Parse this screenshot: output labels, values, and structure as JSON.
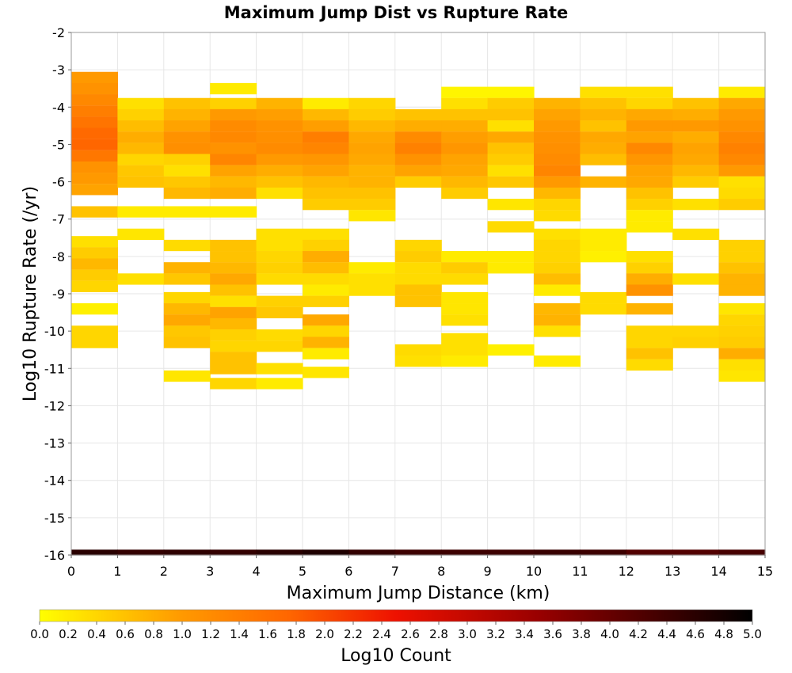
{
  "chart_data": {
    "type": "heatmap",
    "title": "Maximum Jump Dist vs Rupture Rate",
    "xlabel": "Maximum Jump Distance (km)",
    "ylabel": "Log10 Rupture Rate (/yr)",
    "xlim": [
      0,
      15
    ],
    "ylim": [
      -16,
      -2
    ],
    "x_ticks": [
      "0",
      "1",
      "2",
      "3",
      "4",
      "5",
      "6",
      "7",
      "8",
      "9",
      "10",
      "11",
      "12",
      "13",
      "14",
      "15"
    ],
    "y_ticks": [
      "-2",
      "-3",
      "-4",
      "-5",
      "-6",
      "-7",
      "-8",
      "-9",
      "-10",
      "-11",
      "-12",
      "-13",
      "-14",
      "-15",
      "-16"
    ],
    "bin_width_x": 1,
    "bin_height_y": 0.29,
    "grid": true,
    "colorbar": {
      "label": "Log10 Count",
      "min": 0.0,
      "max": 5.0,
      "ticks": [
        "0.0",
        "0.2",
        "0.4",
        "0.6",
        "0.8",
        "1.0",
        "1.2",
        "1.4",
        "1.6",
        "1.8",
        "2.0",
        "2.2",
        "2.4",
        "2.6",
        "2.8",
        "3.0",
        "3.2",
        "3.4",
        "3.6",
        "3.8",
        "4.0",
        "4.2",
        "4.4",
        "4.6",
        "4.8",
        "5.0"
      ],
      "colors": [
        "#ffff00",
        "#ff9900",
        "#ff6600",
        "#ee1100",
        "#990000",
        "#000000"
      ]
    },
    "columns": [
      {
        "x": 0,
        "cells": [
          [
            -3.2,
            1.0
          ],
          [
            -3.5,
            1.1
          ],
          [
            -3.8,
            1.25
          ],
          [
            -4.1,
            1.4
          ],
          [
            -4.4,
            1.55
          ],
          [
            -4.7,
            1.7
          ],
          [
            -5.0,
            1.75
          ],
          [
            -5.3,
            1.5
          ],
          [
            -5.6,
            1.1
          ],
          [
            -5.9,
            1.0
          ],
          [
            -6.2,
            0.9
          ],
          [
            -6.8,
            0.6
          ],
          [
            -7.6,
            0.3
          ],
          [
            -7.9,
            0.5
          ],
          [
            -8.2,
            0.7
          ],
          [
            -8.5,
            0.5
          ],
          [
            -8.8,
            0.4
          ],
          [
            -9.4,
            0.15
          ],
          [
            -10.0,
            0.4
          ],
          [
            -10.3,
            0.4
          ],
          [
            -16.0,
            4.6
          ]
        ]
      },
      {
        "x": 1,
        "cells": [
          [
            -3.9,
            0.3
          ],
          [
            -4.2,
            0.45
          ],
          [
            -4.5,
            0.65
          ],
          [
            -4.8,
            0.8
          ],
          [
            -5.1,
            0.7
          ],
          [
            -5.4,
            0.4
          ],
          [
            -5.7,
            0.55
          ],
          [
            -6.0,
            0.6
          ],
          [
            -6.8,
            0.2
          ],
          [
            -7.4,
            0.25
          ],
          [
            -8.6,
            0.3
          ],
          [
            -16.0,
            4.5
          ]
        ]
      },
      {
        "x": 2,
        "cells": [
          [
            -3.9,
            0.6
          ],
          [
            -4.2,
            0.75
          ],
          [
            -4.5,
            0.9
          ],
          [
            -4.8,
            1.1
          ],
          [
            -5.1,
            1.15
          ],
          [
            -5.4,
            0.45
          ],
          [
            -5.7,
            0.3
          ],
          [
            -6.0,
            0.55
          ],
          [
            -6.3,
            0.7
          ],
          [
            -6.8,
            0.2
          ],
          [
            -7.7,
            0.35
          ],
          [
            -8.3,
            0.75
          ],
          [
            -8.6,
            0.55
          ],
          [
            -9.1,
            0.4
          ],
          [
            -9.4,
            0.7
          ],
          [
            -9.7,
            0.85
          ],
          [
            -10.0,
            0.55
          ],
          [
            -10.3,
            0.6
          ],
          [
            -11.2,
            0.25
          ],
          [
            -16.0,
            4.55
          ]
        ]
      },
      {
        "x": 3,
        "cells": [
          [
            -3.5,
            0.2
          ],
          [
            -3.9,
            0.45
          ],
          [
            -4.2,
            1.0
          ],
          [
            -4.5,
            1.2
          ],
          [
            -4.8,
            1.25
          ],
          [
            -5.1,
            1.1
          ],
          [
            -5.4,
            1.3
          ],
          [
            -5.7,
            0.9
          ],
          [
            -6.0,
            0.7
          ],
          [
            -6.3,
            0.8
          ],
          [
            -6.8,
            0.2
          ],
          [
            -7.7,
            0.6
          ],
          [
            -8.0,
            0.6
          ],
          [
            -8.3,
            0.7
          ],
          [
            -8.6,
            0.85
          ],
          [
            -8.9,
            0.6
          ],
          [
            -9.2,
            0.3
          ],
          [
            -9.5,
            0.9
          ],
          [
            -9.8,
            0.7
          ],
          [
            -10.1,
            0.45
          ],
          [
            -10.4,
            0.4
          ],
          [
            -10.7,
            0.6
          ],
          [
            -11.0,
            0.6
          ],
          [
            -11.4,
            0.4
          ],
          [
            -16.0,
            4.5
          ]
        ]
      },
      {
        "x": 4,
        "cells": [
          [
            -3.9,
            0.75
          ],
          [
            -4.2,
            0.95
          ],
          [
            -4.5,
            1.1
          ],
          [
            -4.8,
            1.15
          ],
          [
            -5.1,
            1.2
          ],
          [
            -5.4,
            1.0
          ],
          [
            -5.7,
            0.8
          ],
          [
            -6.0,
            0.6
          ],
          [
            -6.3,
            0.3
          ],
          [
            -7.4,
            0.3
          ],
          [
            -7.7,
            0.3
          ],
          [
            -8.0,
            0.4
          ],
          [
            -8.3,
            0.45
          ],
          [
            -8.6,
            0.35
          ],
          [
            -9.2,
            0.45
          ],
          [
            -9.5,
            0.55
          ],
          [
            -10.1,
            0.35
          ],
          [
            -10.4,
            0.4
          ],
          [
            -11.0,
            0.3
          ],
          [
            -11.4,
            0.2
          ],
          [
            -16.0,
            4.6
          ]
        ]
      },
      {
        "x": 5,
        "cells": [
          [
            -3.9,
            0.2
          ],
          [
            -4.2,
            0.7
          ],
          [
            -4.5,
            0.95
          ],
          [
            -4.8,
            1.4
          ],
          [
            -5.1,
            1.3
          ],
          [
            -5.4,
            1.05
          ],
          [
            -5.7,
            0.9
          ],
          [
            -6.0,
            0.7
          ],
          [
            -6.3,
            0.6
          ],
          [
            -6.6,
            0.5
          ],
          [
            -7.4,
            0.3
          ],
          [
            -7.7,
            0.45
          ],
          [
            -8.0,
            0.8
          ],
          [
            -8.3,
            0.65
          ],
          [
            -8.6,
            0.35
          ],
          [
            -8.9,
            0.2
          ],
          [
            -9.2,
            0.45
          ],
          [
            -9.7,
            0.85
          ],
          [
            -10.0,
            0.4
          ],
          [
            -10.3,
            0.75
          ],
          [
            -10.6,
            0.2
          ],
          [
            -11.1,
            0.25
          ],
          [
            -16.0,
            4.7
          ]
        ]
      },
      {
        "x": 6,
        "cells": [
          [
            -3.9,
            0.4
          ],
          [
            -4.2,
            0.5
          ],
          [
            -4.5,
            0.7
          ],
          [
            -4.8,
            0.85
          ],
          [
            -5.1,
            0.9
          ],
          [
            -5.4,
            0.85
          ],
          [
            -5.7,
            0.75
          ],
          [
            -6.0,
            0.75
          ],
          [
            -6.3,
            0.6
          ],
          [
            -6.6,
            0.5
          ],
          [
            -6.9,
            0.25
          ],
          [
            -8.3,
            0.2
          ],
          [
            -8.6,
            0.3
          ],
          [
            -8.9,
            0.3
          ],
          [
            -16.0,
            4.5
          ]
        ]
      },
      {
        "x": 7,
        "cells": [
          [
            -4.2,
            0.6
          ],
          [
            -4.5,
            0.8
          ],
          [
            -4.8,
            1.2
          ],
          [
            -5.1,
            1.35
          ],
          [
            -5.4,
            1.1
          ],
          [
            -5.7,
            0.9
          ],
          [
            -6.0,
            0.5
          ],
          [
            -7.7,
            0.4
          ],
          [
            -8.0,
            0.5
          ],
          [
            -8.3,
            0.35
          ],
          [
            -8.6,
            0.35
          ],
          [
            -8.9,
            0.6
          ],
          [
            -9.2,
            0.6
          ],
          [
            -10.5,
            0.35
          ],
          [
            -10.8,
            0.3
          ],
          [
            -16.0,
            4.4
          ]
        ]
      },
      {
        "x": 8,
        "cells": [
          [
            -3.6,
            0.1
          ],
          [
            -3.9,
            0.3
          ],
          [
            -4.2,
            0.6
          ],
          [
            -4.5,
            0.8
          ],
          [
            -4.8,
            0.95
          ],
          [
            -5.1,
            1.05
          ],
          [
            -5.4,
            0.9
          ],
          [
            -5.7,
            0.85
          ],
          [
            -6.0,
            0.7
          ],
          [
            -6.3,
            0.5
          ],
          [
            -8.0,
            0.2
          ],
          [
            -8.3,
            0.5
          ],
          [
            -8.6,
            0.35
          ],
          [
            -9.1,
            0.25
          ],
          [
            -9.4,
            0.25
          ],
          [
            -9.7,
            0.3
          ],
          [
            -10.2,
            0.3
          ],
          [
            -10.5,
            0.3
          ],
          [
            -10.8,
            0.2
          ],
          [
            -16.0,
            4.4
          ]
        ]
      },
      {
        "x": 9,
        "cells": [
          [
            -3.6,
            0.1
          ],
          [
            -3.9,
            0.5
          ],
          [
            -4.2,
            0.6
          ],
          [
            -4.5,
            0.3
          ],
          [
            -4.8,
            0.85
          ],
          [
            -5.1,
            0.6
          ],
          [
            -5.4,
            0.5
          ],
          [
            -5.7,
            0.3
          ],
          [
            -6.0,
            0.55
          ],
          [
            -6.6,
            0.25
          ],
          [
            -7.2,
            0.35
          ],
          [
            -8.0,
            0.2
          ],
          [
            -8.3,
            0.2
          ],
          [
            -10.5,
            0.15
          ],
          [
            -16.0,
            4.4
          ]
        ]
      },
      {
        "x": 10,
        "cells": [
          [
            -3.9,
            0.75
          ],
          [
            -4.2,
            0.9
          ],
          [
            -4.5,
            1.0
          ],
          [
            -4.8,
            1.1
          ],
          [
            -5.1,
            1.15
          ],
          [
            -5.4,
            1.2
          ],
          [
            -5.7,
            1.3
          ],
          [
            -6.0,
            1.0
          ],
          [
            -6.3,
            0.7
          ],
          [
            -6.6,
            0.4
          ],
          [
            -6.9,
            0.35
          ],
          [
            -7.4,
            0.3
          ],
          [
            -7.7,
            0.4
          ],
          [
            -8.0,
            0.4
          ],
          [
            -8.3,
            0.45
          ],
          [
            -8.6,
            0.65
          ],
          [
            -8.9,
            0.2
          ],
          [
            -9.4,
            0.7
          ],
          [
            -9.7,
            0.75
          ],
          [
            -10.0,
            0.3
          ],
          [
            -10.8,
            0.2
          ],
          [
            -16.0,
            4.45
          ]
        ]
      },
      {
        "x": 11,
        "cells": [
          [
            -3.6,
            0.3
          ],
          [
            -3.9,
            0.6
          ],
          [
            -4.2,
            0.75
          ],
          [
            -4.5,
            0.6
          ],
          [
            -4.8,
            0.85
          ],
          [
            -5.1,
            0.8
          ],
          [
            -5.4,
            0.65
          ],
          [
            -6.0,
            0.75
          ],
          [
            -7.4,
            0.2
          ],
          [
            -7.7,
            0.2
          ],
          [
            -8.0,
            0.15
          ],
          [
            -9.1,
            0.35
          ],
          [
            -9.4,
            0.35
          ],
          [
            -16.0,
            4.4
          ]
        ]
      },
      {
        "x": 12,
        "cells": [
          [
            -3.6,
            0.3
          ],
          [
            -3.9,
            0.4
          ],
          [
            -4.2,
            0.85
          ],
          [
            -4.5,
            1.0
          ],
          [
            -4.8,
            0.9
          ],
          [
            -5.1,
            1.25
          ],
          [
            -5.4,
            1.05
          ],
          [
            -5.7,
            0.9
          ],
          [
            -6.0,
            0.85
          ],
          [
            -6.3,
            0.6
          ],
          [
            -6.6,
            0.45
          ],
          [
            -6.9,
            0.2
          ],
          [
            -7.2,
            0.2
          ],
          [
            -8.0,
            0.3
          ],
          [
            -8.3,
            0.45
          ],
          [
            -8.6,
            0.8
          ],
          [
            -8.9,
            1.1
          ],
          [
            -9.4,
            0.75
          ],
          [
            -10.0,
            0.4
          ],
          [
            -10.3,
            0.4
          ],
          [
            -10.6,
            0.6
          ],
          [
            -10.9,
            0.35
          ],
          [
            -16.0,
            4.2
          ]
        ]
      },
      {
        "x": 13,
        "cells": [
          [
            -3.9,
            0.6
          ],
          [
            -4.2,
            0.8
          ],
          [
            -4.5,
            1.0
          ],
          [
            -4.8,
            0.8
          ],
          [
            -5.1,
            0.9
          ],
          [
            -5.4,
            0.85
          ],
          [
            -5.7,
            0.7
          ],
          [
            -6.0,
            0.5
          ],
          [
            -6.6,
            0.3
          ],
          [
            -7.4,
            0.3
          ],
          [
            -8.6,
            0.3
          ],
          [
            -10.0,
            0.4
          ],
          [
            -10.3,
            0.45
          ],
          [
            -16.0,
            4.2
          ]
        ]
      },
      {
        "x": 14,
        "cells": [
          [
            -3.6,
            0.2
          ],
          [
            -3.9,
            0.85
          ],
          [
            -4.2,
            1.0
          ],
          [
            -4.5,
            1.1
          ],
          [
            -4.8,
            1.25
          ],
          [
            -5.1,
            1.35
          ],
          [
            -5.4,
            1.25
          ],
          [
            -5.7,
            1.0
          ],
          [
            -6.0,
            0.3
          ],
          [
            -6.3,
            0.35
          ],
          [
            -6.6,
            0.5
          ],
          [
            -7.7,
            0.45
          ],
          [
            -8.0,
            0.45
          ],
          [
            -8.3,
            0.6
          ],
          [
            -8.6,
            0.75
          ],
          [
            -8.9,
            0.75
          ],
          [
            -9.4,
            0.25
          ],
          [
            -9.7,
            0.4
          ],
          [
            -10.0,
            0.45
          ],
          [
            -10.3,
            0.5
          ],
          [
            -10.6,
            0.8
          ],
          [
            -10.9,
            0.3
          ],
          [
            -11.2,
            0.25
          ],
          [
            -16.0,
            4.3
          ]
        ]
      }
    ]
  }
}
